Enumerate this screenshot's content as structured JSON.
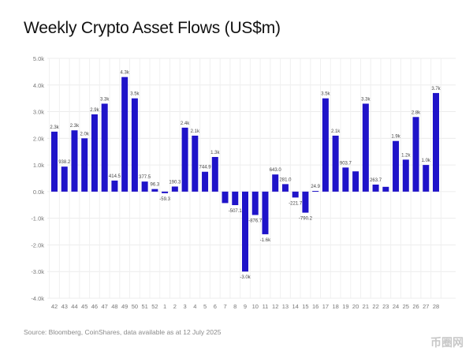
{
  "chart_data": {
    "type": "bar",
    "title": "Weekly Crypto Asset Flows (US$m)",
    "xlabel": "",
    "ylabel": "",
    "ylim": [
      -4000,
      5000
    ],
    "yticks": [
      -4000,
      -3000,
      -2000,
      -1000,
      0,
      1000,
      2000,
      3000,
      4000,
      5000
    ],
    "ytick_labels": [
      "-4.0k",
      "-3.0k",
      "-2.0k",
      "-1.0k",
      "0.0k",
      "1.0k",
      "2.0k",
      "3.0k",
      "4.0k",
      "5.0k"
    ],
    "grid": true,
    "color": "#1f13c9",
    "categories": [
      "42",
      "43",
      "44",
      "45",
      "46",
      "47",
      "48",
      "49",
      "50",
      "51",
      "52",
      "1",
      "2",
      "3",
      "4",
      "5",
      "6",
      "7",
      "8",
      "9",
      "10",
      "11",
      "12",
      "13",
      "14",
      "15",
      "16",
      "17",
      "18",
      "19",
      "20",
      "21",
      "22",
      "23",
      "24",
      "25",
      "26",
      "27",
      "28"
    ],
    "values": [
      2250,
      938.2,
      2300,
      2000,
      2900,
      3300,
      414.5,
      4300,
      3500,
      377.5,
      96.3,
      -59.3,
      190.3,
      2400,
      2100,
      744.9,
      1300,
      -430,
      -507.1,
      -3000,
      -876.7,
      -1600,
      643.0,
      281.0,
      -221.7,
      -790.2,
      24.9,
      3500,
      2100,
      903.7,
      760,
      3300,
      263.7,
      180,
      1900,
      1200,
      2800,
      1000,
      3700
    ],
    "data_labels": [
      "2.3k",
      "938.2",
      "2.3k",
      "2.0k",
      "2.9k",
      "3.3k",
      "414.5",
      "4.3k",
      "3.5k",
      "377.5",
      "96.3",
      "-59.3",
      "190.3",
      "2.4k",
      "2.1k",
      "744.9",
      "1.3k",
      "",
      "-507.1",
      "-3.0k",
      "-876.7",
      "-1.6k",
      "643.0",
      "281.0",
      "-221.7",
      "-790.2",
      "24.9",
      "3.5k",
      "2.1k",
      "903.7",
      "",
      "3.3k",
      "263.7",
      "",
      "1.9k",
      "1.2k",
      "2.8k",
      "1.0k",
      "3.7k"
    ]
  },
  "source": "Source: Bloomberg, CoinShares, data available as at 12 July 2025",
  "watermark": "币圈网"
}
